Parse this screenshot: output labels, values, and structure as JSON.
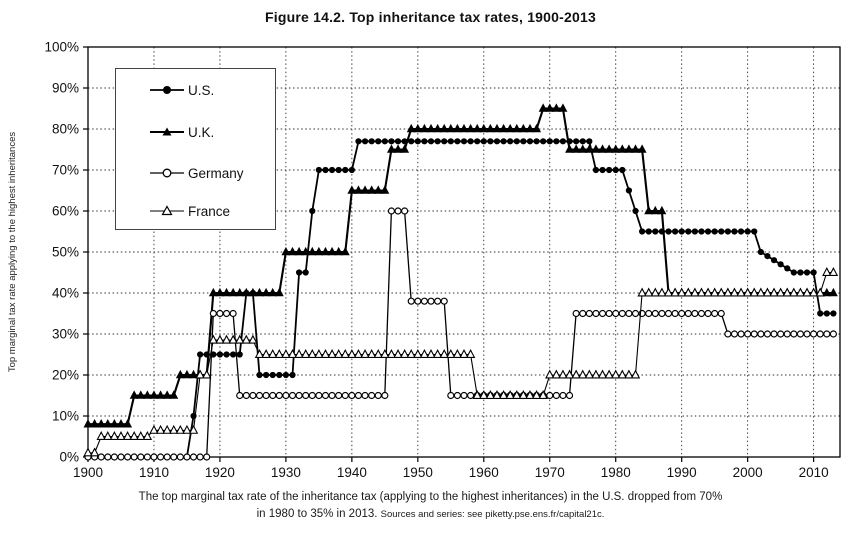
{
  "figure": {
    "title": "Figure 14.2. Top inheritance tax rates, 1900-2013",
    "y_axis_title": "Top marginal tax rate applying to the highest inheritances",
    "caption_line1": "The top marginal tax rate of the inheritance tax (applying to the highest inheritances) in the U.S. dropped from 70%",
    "caption_line2": "in 1980 to 35% in 2013.",
    "caption_source": "Sources and series: see piketty.pse.ens.fr/capital21c.",
    "ink_color": "#000000",
    "grid_color": "#333333"
  },
  "chart_data": {
    "type": "line",
    "title": "Figure 14.2. Top inheritance tax rates, 1900-2013",
    "xlabel": "",
    "ylabel": "Top marginal tax rate applying to the highest inheritances",
    "xlim": [
      1900,
      2014
    ],
    "ylim": [
      0,
      100
    ],
    "grid": true,
    "legend_position": "top-left-inside",
    "x_ticks": [
      1900,
      1910,
      1920,
      1930,
      1940,
      1950,
      1960,
      1970,
      1980,
      1990,
      2000,
      2010
    ],
    "y_ticks": [
      0,
      10,
      20,
      30,
      40,
      50,
      60,
      70,
      80,
      90,
      100
    ],
    "y_tick_suffix": "%",
    "end_year": 2013,
    "series": [
      {
        "name": "U.S.",
        "marker": "circle-filled",
        "color": "#000000",
        "steps": [
          [
            1900,
            0
          ],
          [
            1916,
            10
          ],
          [
            1917,
            25
          ],
          [
            1924,
            40
          ],
          [
            1926,
            20
          ],
          [
            1932,
            45
          ],
          [
            1934,
            60
          ],
          [
            1935,
            70
          ],
          [
            1941,
            77
          ],
          [
            1977,
            70
          ],
          [
            1982,
            65
          ],
          [
            1983,
            60
          ],
          [
            1984,
            55
          ],
          [
            2002,
            50
          ],
          [
            2003,
            49
          ],
          [
            2004,
            48
          ],
          [
            2005,
            47
          ],
          [
            2006,
            46
          ],
          [
            2007,
            45
          ],
          [
            2011,
            35
          ]
        ]
      },
      {
        "name": "U.K.",
        "marker": "triangle-filled",
        "color": "#000000",
        "steps": [
          [
            1900,
            8
          ],
          [
            1907,
            15
          ],
          [
            1914,
            20
          ],
          [
            1919,
            40
          ],
          [
            1930,
            50
          ],
          [
            1940,
            65
          ],
          [
            1946,
            75
          ],
          [
            1949,
            80
          ],
          [
            1969,
            85
          ],
          [
            1973,
            75
          ],
          [
            1985,
            60
          ],
          [
            1988,
            40
          ]
        ]
      },
      {
        "name": "Germany",
        "marker": "circle-open",
        "color": "#000000",
        "steps": [
          [
            1900,
            0
          ],
          [
            1919,
            35
          ],
          [
            1923,
            15
          ],
          [
            1946,
            60
          ],
          [
            1949,
            38
          ],
          [
            1955,
            15
          ],
          [
            1974,
            35
          ],
          [
            1997,
            30
          ]
        ]
      },
      {
        "name": "France",
        "marker": "triangle-open",
        "color": "#000000",
        "steps": [
          [
            1900,
            1
          ],
          [
            1902,
            5
          ],
          [
            1910,
            6.5
          ],
          [
            1917,
            20
          ],
          [
            1919,
            28.5
          ],
          [
            1926,
            25
          ],
          [
            1959,
            15
          ],
          [
            1970,
            20
          ],
          [
            1984,
            40
          ],
          [
            2012,
            45
          ]
        ]
      }
    ]
  }
}
